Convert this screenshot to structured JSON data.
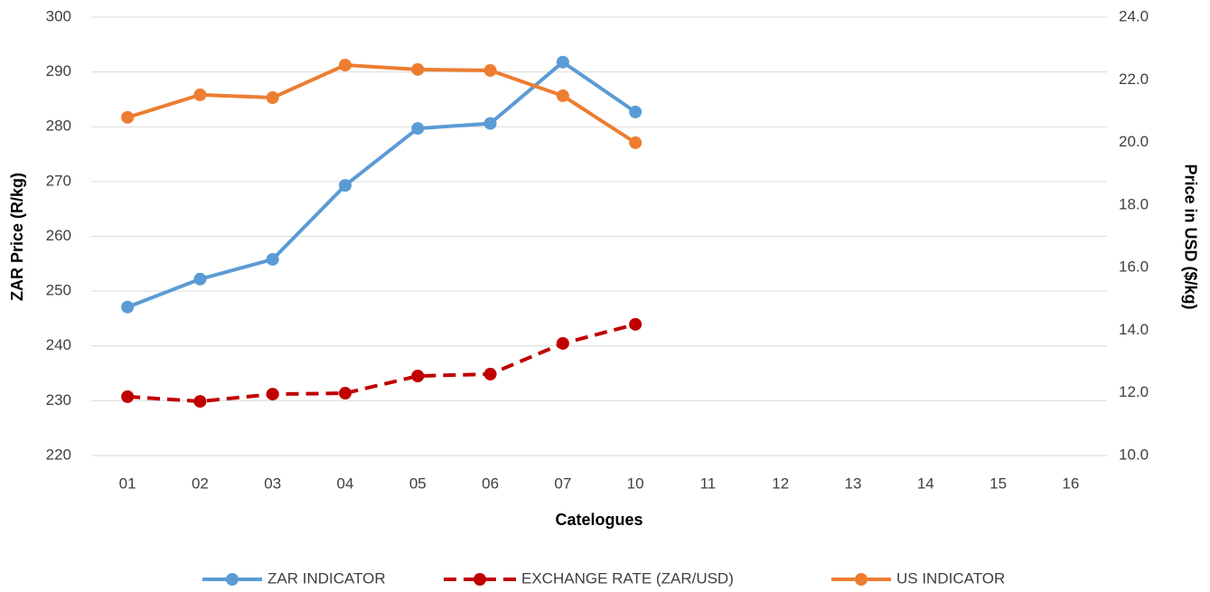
{
  "chart_data": {
    "type": "line",
    "x_label": "Catelogues",
    "y_label": "ZAR Price (R/kg)",
    "y2_label": "Price in USD ($/kg)",
    "categories": [
      "01",
      "02",
      "03",
      "04",
      "05",
      "06",
      "07",
      "10",
      "11",
      "12",
      "13",
      "14",
      "15",
      "16"
    ],
    "series": [
      {
        "name": "ZAR INDICATOR",
        "color": "#5b9bd5",
        "axis": "y",
        "dashed": false,
        "values": [
          247.1,
          252.2,
          255.8,
          269.3,
          279.7,
          280.6,
          291.8,
          282.7,
          null,
          null,
          null,
          null,
          null,
          null
        ]
      },
      {
        "name": "EXCHANGE RATE (ZAR/USD)",
        "color": "#c00000",
        "axis": "y2",
        "dashed": true,
        "values": [
          11.88,
          11.73,
          11.96,
          11.99,
          12.54,
          12.6,
          13.58,
          14.19,
          null,
          null,
          null,
          null,
          null,
          null
        ]
      },
      {
        "name": "US INDICATOR",
        "color": "#ed7d31",
        "axis": "y2",
        "dashed": false,
        "values": [
          20.8,
          21.52,
          21.43,
          22.47,
          22.33,
          22.3,
          21.49,
          19.99,
          null,
          null,
          null,
          null,
          null,
          null
        ]
      }
    ],
    "ylim": [
      220,
      300
    ],
    "yticks": [
      220,
      230,
      240,
      250,
      260,
      270,
      280,
      290,
      300
    ],
    "y2lim": [
      10,
      24
    ],
    "y2ticks": [
      {
        "value": 10,
        "label": "10.0"
      },
      {
        "value": 12,
        "label": "12.0"
      },
      {
        "value": 14,
        "label": "14.0"
      },
      {
        "value": 16,
        "label": "16.0"
      },
      {
        "value": 18,
        "label": "18.0"
      },
      {
        "value": 20,
        "label": "20.0"
      },
      {
        "value": 22,
        "label": "22.0"
      },
      {
        "value": 24,
        "label": "24.0"
      }
    ],
    "grid": true,
    "legend": "bottom"
  }
}
